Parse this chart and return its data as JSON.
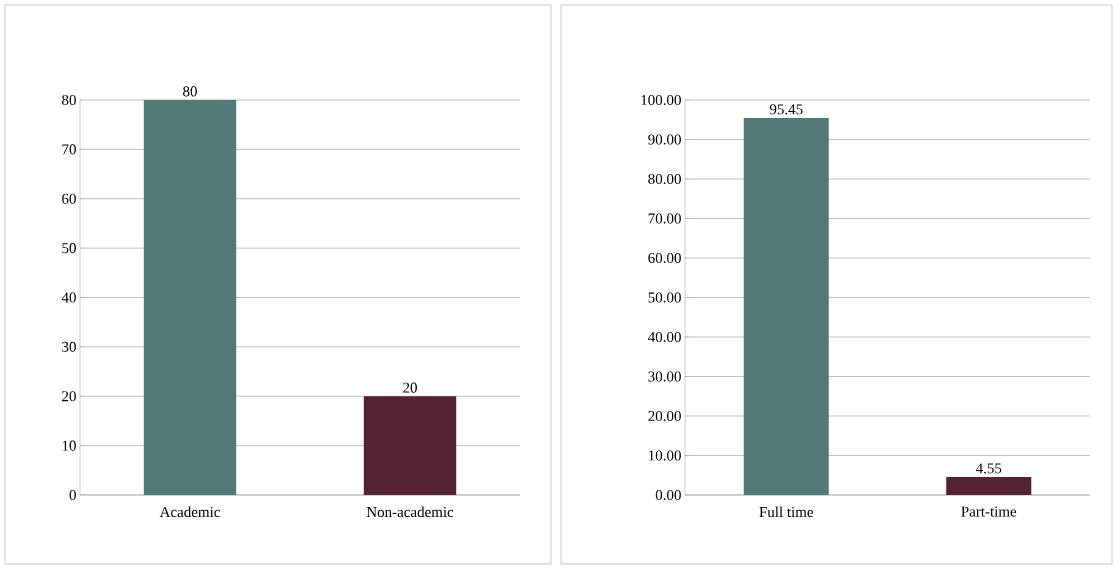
{
  "chart_data": [
    {
      "type": "bar",
      "categories": [
        "Academic",
        "Non-academic"
      ],
      "values": [
        80,
        20
      ],
      "colors": [
        "#537878",
        "#552233"
      ],
      "ylim": [
        0,
        80
      ],
      "yticks": [
        0,
        10,
        20,
        30,
        40,
        50,
        60,
        70,
        80
      ],
      "grid": "y",
      "data_labels": true
    },
    {
      "type": "bar",
      "categories": [
        "Full time",
        "Part-time"
      ],
      "values": [
        95.45,
        4.55
      ],
      "colors": [
        "#537878",
        "#552233"
      ],
      "ylim": [
        0,
        100
      ],
      "yticks": [
        {
          "value": 0,
          "label": "0.00"
        },
        {
          "value": 10,
          "label": "10.00"
        },
        {
          "value": 20,
          "label": "20.00"
        },
        {
          "value": 30,
          "label": "30.00"
        },
        {
          "value": 40,
          "label": "40.00"
        },
        {
          "value": 50,
          "label": "50.00"
        },
        {
          "value": 60,
          "label": "60.00"
        },
        {
          "value": 70,
          "label": "70.00"
        },
        {
          "value": 80,
          "label": "80.00"
        },
        {
          "value": 90,
          "label": "90.00"
        },
        {
          "value": 100,
          "label": "100.00"
        }
      ],
      "grid": "y",
      "data_labels": true
    }
  ]
}
